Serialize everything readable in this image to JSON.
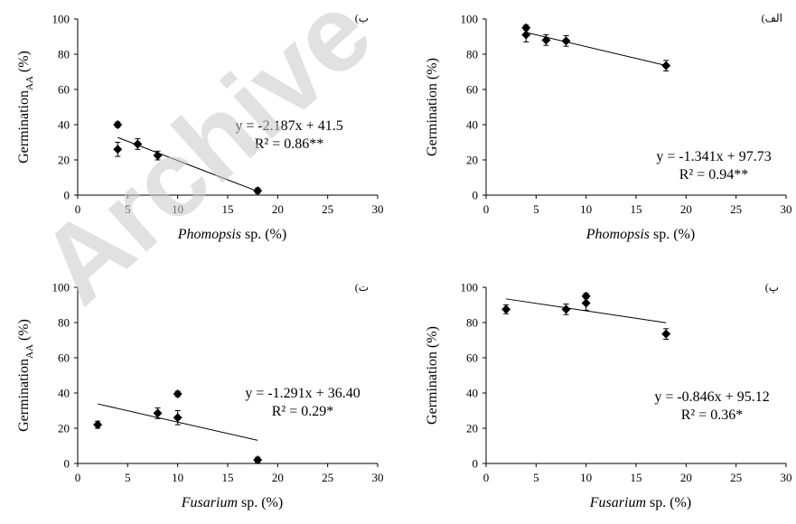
{
  "watermark": "Archive",
  "chart_data": [
    {
      "type": "scatter",
      "panel_label": "(ب",
      "xlabel_italic": "Phomopsis",
      "xlabel_rest": " sp. (%)",
      "ylabel_main": "Germination",
      "ylabel_sub": "AA",
      "ylabel_unit": " (%)",
      "xlim": [
        0,
        30
      ],
      "xticks": [
        0,
        5,
        10,
        15,
        20,
        25,
        30
      ],
      "ylim": [
        0,
        100
      ],
      "yticks": [
        0,
        20,
        40,
        60,
        80,
        100
      ],
      "points": [
        {
          "x": 4,
          "y": 40,
          "err": 1.5
        },
        {
          "x": 4,
          "y": 26,
          "err": 4
        },
        {
          "x": 6,
          "y": 29,
          "err": 3
        },
        {
          "x": 8,
          "y": 22.5,
          "err": 2.5
        },
        {
          "x": 18,
          "y": 2.5,
          "err": 1.5
        }
      ],
      "trend": {
        "slope": -2.187,
        "intercept": 41.5,
        "x_from": 4,
        "x_to": 18
      },
      "equation": "y = -2.187x + 41.5",
      "r2": "R² = 0.86**"
    },
    {
      "type": "scatter",
      "panel_label": "(الف",
      "xlabel_italic": "Phomopsis",
      "xlabel_rest": " sp. (%)",
      "ylabel_main": "Germination",
      "ylabel_sub": "",
      "ylabel_unit": " (%)",
      "xlim": [
        0,
        30
      ],
      "xticks": [
        0,
        5,
        10,
        15,
        20,
        25,
        30
      ],
      "ylim": [
        0,
        100
      ],
      "yticks": [
        0,
        20,
        40,
        60,
        80,
        100
      ],
      "points": [
        {
          "x": 4,
          "y": 95,
          "err": 1.5
        },
        {
          "x": 4,
          "y": 91,
          "err": 4
        },
        {
          "x": 6,
          "y": 88,
          "err": 3
        },
        {
          "x": 8,
          "y": 87.5,
          "err": 3
        },
        {
          "x": 18,
          "y": 73.5,
          "err": 3
        }
      ],
      "trend": {
        "slope": -1.341,
        "intercept": 97.73,
        "x_from": 4,
        "x_to": 18
      },
      "equation": "y = -1.341x + 97.73",
      "r2": "R² = 0.94**"
    },
    {
      "type": "scatter",
      "panel_label": "(ت",
      "xlabel_italic": "Fusarium",
      "xlabel_rest": " sp. (%)",
      "ylabel_main": "Germination",
      "ylabel_sub": "AA",
      "ylabel_unit": " (%)",
      "xlim": [
        0,
        30
      ],
      "xticks": [
        0,
        5,
        10,
        15,
        20,
        25,
        30
      ],
      "ylim": [
        0,
        100
      ],
      "yticks": [
        0,
        20,
        40,
        60,
        80,
        100
      ],
      "points": [
        {
          "x": 2,
          "y": 22,
          "err": 2
        },
        {
          "x": 8,
          "y": 28.5,
          "err": 3
        },
        {
          "x": 10,
          "y": 39.5,
          "err": 1.5
        },
        {
          "x": 10,
          "y": 26,
          "err": 4
        },
        {
          "x": 18,
          "y": 2,
          "err": 1.5
        }
      ],
      "trend": {
        "slope": -1.291,
        "intercept": 36.4,
        "x_from": 2,
        "x_to": 18
      },
      "equation": "y = -1.291x + 36.40",
      "r2": "R² = 0.29*"
    },
    {
      "type": "scatter",
      "panel_label": "(پ",
      "xlabel_italic": "Fusarium",
      "xlabel_rest": " sp. (%)",
      "ylabel_main": "Germination",
      "ylabel_sub": "",
      "ylabel_unit": " (%)",
      "xlim": [
        0,
        30
      ],
      "xticks": [
        0,
        5,
        10,
        15,
        20,
        25,
        30
      ],
      "ylim": [
        0,
        100
      ],
      "yticks": [
        0,
        20,
        40,
        60,
        80,
        100
      ],
      "points": [
        {
          "x": 2,
          "y": 87.5,
          "err": 2.5
        },
        {
          "x": 8,
          "y": 87.5,
          "err": 3
        },
        {
          "x": 10,
          "y": 95,
          "err": 1.5
        },
        {
          "x": 10,
          "y": 91,
          "err": 4
        },
        {
          "x": 18,
          "y": 73.5,
          "err": 3
        }
      ],
      "trend": {
        "slope": -0.846,
        "intercept": 95.12,
        "x_from": 2,
        "x_to": 18
      },
      "equation": "y = -0.846x + 95.12",
      "r2": "R² = 0.36*"
    }
  ]
}
